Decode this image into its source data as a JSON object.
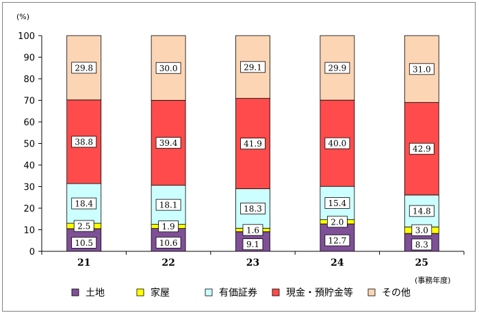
{
  "chart_data": {
    "type": "bar",
    "stacked": true,
    "categories": [
      "21",
      "22",
      "23",
      "24",
      "25"
    ],
    "series": [
      {
        "name": "土地",
        "color": "#7f4f97",
        "values": [
          10.5,
          10.6,
          9.1,
          12.7,
          8.3
        ]
      },
      {
        "name": "家屋",
        "color": "#ffff00",
        "values": [
          2.5,
          1.9,
          1.6,
          2.0,
          3.0
        ]
      },
      {
        "name": "有価証券",
        "color": "#ccffff",
        "values": [
          18.4,
          18.1,
          18.3,
          15.4,
          14.8
        ]
      },
      {
        "name": "現金・預貯金等",
        "color": "#ff4b4b",
        "values": [
          38.8,
          39.4,
          41.9,
          40.0,
          42.9
        ]
      },
      {
        "name": "その他",
        "color": "#fcd5b5",
        "values": [
          29.8,
          30.0,
          29.1,
          29.9,
          31.0
        ]
      }
    ],
    "ylim": [
      0,
      100
    ],
    "yticks": [
      "0",
      "10",
      "20",
      "30",
      "40",
      "50",
      "60",
      "70",
      "80",
      "90",
      "100"
    ],
    "ylabel": "(%)",
    "xlabel": "(事務年度)",
    "grid": false,
    "legend_position": "bottom"
  }
}
